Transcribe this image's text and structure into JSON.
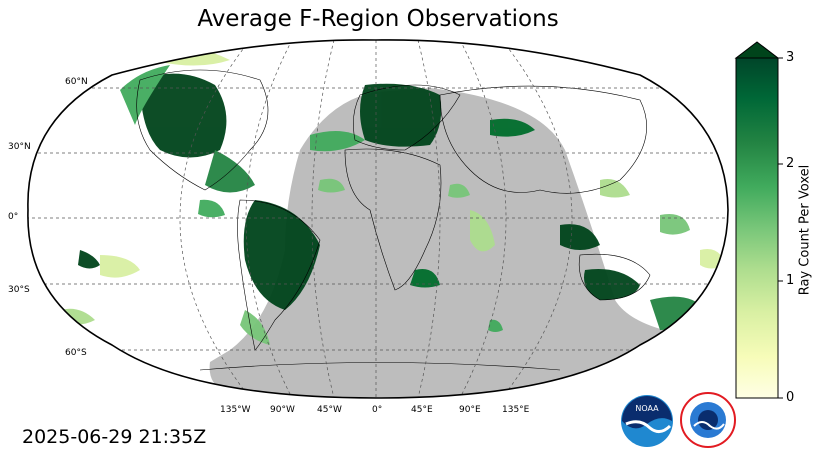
{
  "title": "Average F-Region Observations",
  "timestamp": "2025-06-29 21:35Z",
  "colorbar": {
    "label": "Ray Count Per Voxel",
    "ticks": [
      "0",
      "1",
      "2",
      "3"
    ],
    "min": 0,
    "max": 3,
    "extend": "max",
    "colors": [
      "#ffffe5",
      "#f7fcb9",
      "#d9f0a3",
      "#addd8e",
      "#78c679",
      "#41ab5d",
      "#238443",
      "#006837",
      "#004529"
    ]
  },
  "map": {
    "projection": "Robinson",
    "nightside_shading_color": "#bdbdbd",
    "graticule": "dashed",
    "lat_labels": [
      "60°N",
      "30°N",
      "0°",
      "30°S",
      "60°S"
    ],
    "lon_labels": [
      "135°W",
      "90°W",
      "45°W",
      "0°",
      "45°E",
      "90°E",
      "135°E"
    ]
  },
  "logos": {
    "noaa": "NOAA",
    "nws": "NATIONAL WEATHER SERVICE"
  }
}
